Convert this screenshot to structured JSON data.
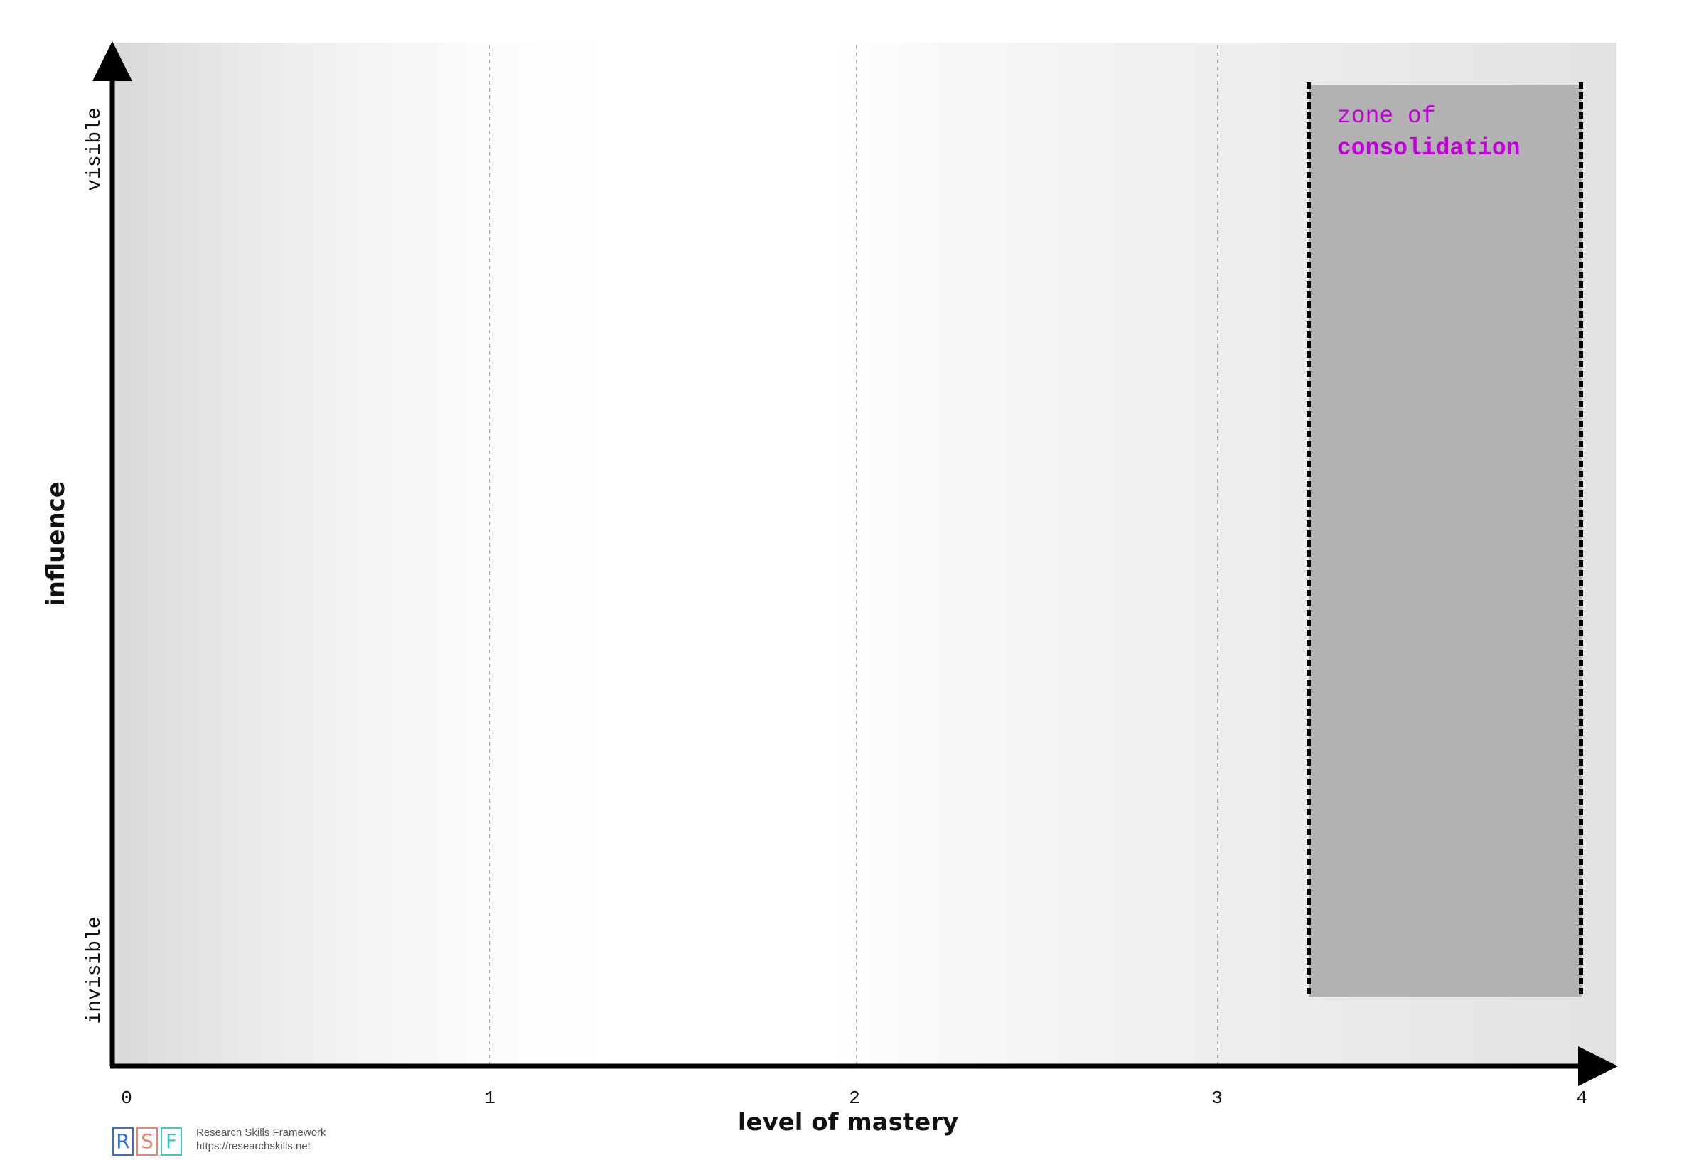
{
  "diagram": {
    "y_axis": {
      "title": "influence",
      "top_label": "visible",
      "bottom_label": "invisible"
    },
    "x_axis": {
      "title": "level of mastery",
      "ticks": [
        "0",
        "1",
        "2",
        "3",
        "4"
      ]
    },
    "zone": {
      "line1": "zone of",
      "line2": "consolidation",
      "start_level": 3.25,
      "end_level": 4.0
    }
  },
  "colors": {
    "zone_text": "#c000d8",
    "zone_fill": "#b2b2b2",
    "axis": "#000000",
    "logo_r": "#3a6fc8",
    "logo_s": "#e8846a",
    "logo_f": "#3ec6c0"
  },
  "footer": {
    "logo_letters": [
      "R",
      "S",
      "F"
    ],
    "name": "Research Skills Framework",
    "url": "https://researchskills.net"
  }
}
